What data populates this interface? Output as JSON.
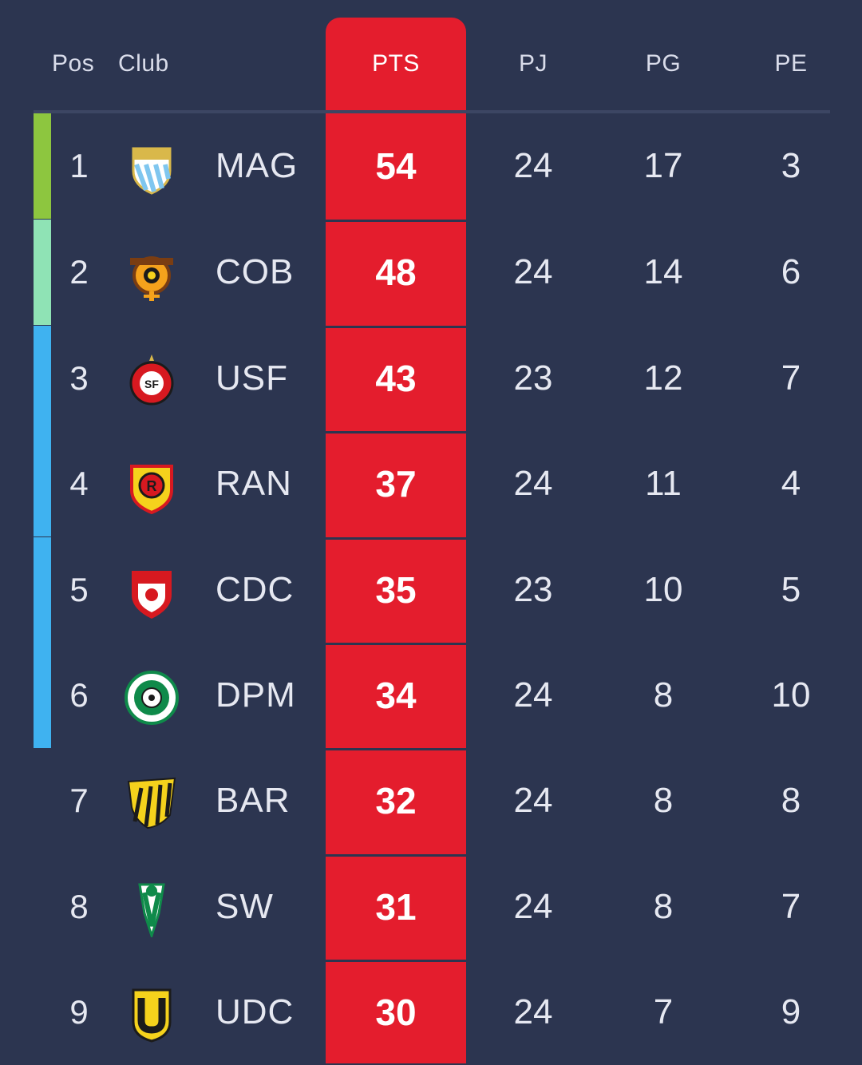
{
  "header": {
    "pos": "Pos",
    "club": "Club",
    "pts": "PTS",
    "pj": "PJ",
    "pg": "PG",
    "pe": "PE"
  },
  "colors": {
    "background": "#2c3550",
    "pts_highlight": "#e41d2d",
    "zone_first": "#8dc63f",
    "zone_second": "#8fe3b5",
    "zone_playoff": "#3fb2f0"
  },
  "rows": [
    {
      "pos": "1",
      "abbr": "MAG",
      "pts": "54",
      "pj": "24",
      "pg": "17",
      "pe": "3",
      "zone": "zone_first",
      "crest": "magallanes-crest-icon"
    },
    {
      "pos": "2",
      "abbr": "COB",
      "pts": "48",
      "pj": "24",
      "pg": "14",
      "pe": "6",
      "zone": "zone_second",
      "crest": "cobreloa-crest-icon"
    },
    {
      "pos": "3",
      "abbr": "USF",
      "pts": "43",
      "pj": "23",
      "pg": "12",
      "pe": "7",
      "zone": "zone_playoff",
      "crest": "union-san-felipe-crest-icon"
    },
    {
      "pos": "4",
      "abbr": "RAN",
      "pts": "37",
      "pj": "24",
      "pg": "11",
      "pe": "4",
      "zone": "zone_playoff",
      "crest": "rangers-crest-icon"
    },
    {
      "pos": "5",
      "abbr": "CDC",
      "pts": "35",
      "pj": "23",
      "pg": "10",
      "pe": "5",
      "zone": "zone_playoff",
      "crest": "deportes-copiapo-crest-icon"
    },
    {
      "pos": "6",
      "abbr": "DPM",
      "pts": "34",
      "pj": "24",
      "pg": "8",
      "pe": "10",
      "zone": "zone_playoff",
      "crest": "puerto-montt-crest-icon"
    },
    {
      "pos": "7",
      "abbr": "BAR",
      "pts": "32",
      "pj": "24",
      "pg": "8",
      "pe": "8",
      "zone": "",
      "crest": "barnechea-crest-icon"
    },
    {
      "pos": "8",
      "abbr": "SW",
      "pts": "31",
      "pj": "24",
      "pg": "8",
      "pe": "7",
      "zone": "",
      "crest": "santiago-wanderers-crest-icon"
    },
    {
      "pos": "9",
      "abbr": "UDC",
      "pts": "30",
      "pj": "24",
      "pg": "7",
      "pe": "9",
      "zone": "",
      "crest": "udec-crest-icon"
    }
  ]
}
